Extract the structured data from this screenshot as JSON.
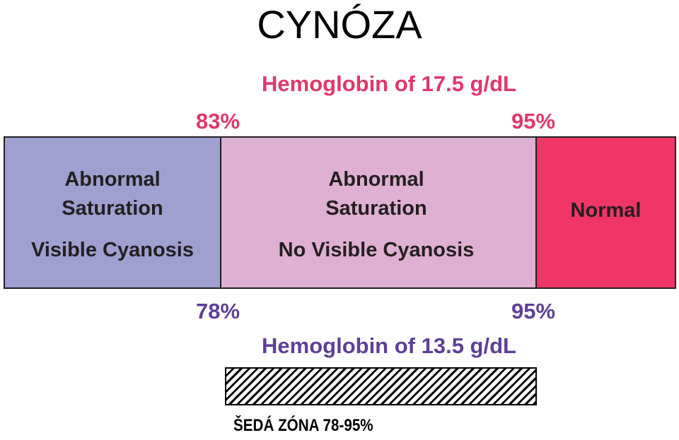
{
  "title": "CYNÓZA",
  "top_axis": {
    "hemoglobin_label": "Hemoglobin of 17.5 g/dL",
    "left_threshold": "83%",
    "right_threshold": "95%",
    "color": "#e0386a"
  },
  "segments": [
    {
      "line1": "Abnormal",
      "line2": "Saturation",
      "line3": "Visible Cyanosis",
      "color": "#9fa0cf"
    },
    {
      "line1": "Abnormal",
      "line2": "Saturation",
      "line3": "No Visible Cyanosis",
      "color": "#deb0d3"
    },
    {
      "line1": "Normal",
      "color": "#ef3667"
    }
  ],
  "bottom_axis": {
    "hemoglobin_label": "Hemoglobin of 13.5 g/dL",
    "left_threshold": "78%",
    "right_threshold": "95%",
    "color": "#5e3f97"
  },
  "gray_zone": {
    "label": "ŠEDÁ ZÓNA 78-95%"
  }
}
